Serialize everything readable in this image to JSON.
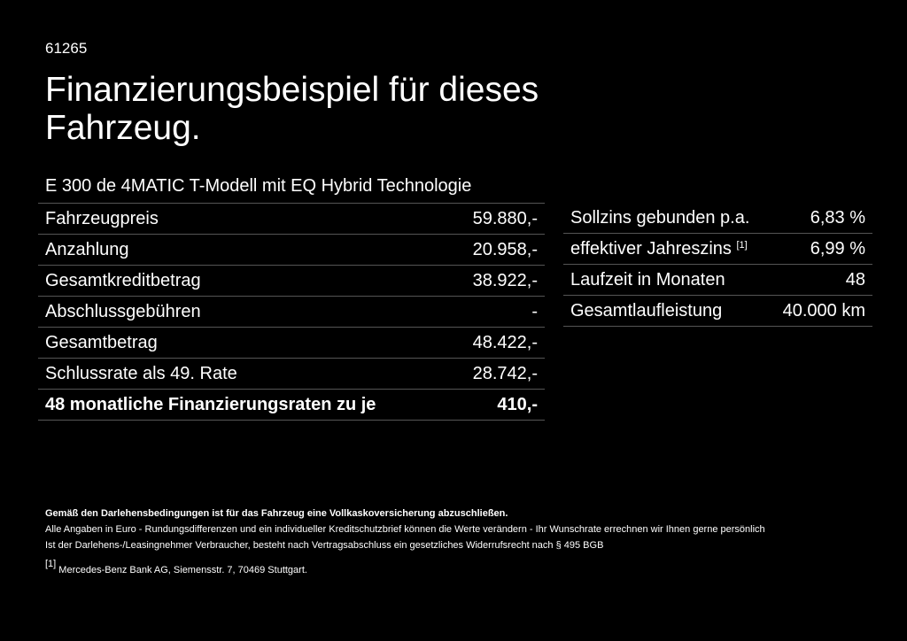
{
  "code": "61265",
  "title": "Finanzierungsbeispiel für dieses Fahrzeug.",
  "model": "E 300 de 4MATIC T-Modell mit EQ Hybrid Technologie",
  "left_rows": [
    {
      "label": "Fahrzeugpreis",
      "value": "59.880,-"
    },
    {
      "label": "Anzahlung",
      "value": "20.958,-"
    },
    {
      "label": "Gesamtkreditbetrag",
      "value": "38.922,-"
    },
    {
      "label": "Abschlussgebühren",
      "value": "-"
    },
    {
      "label": "Gesamtbetrag",
      "value": "48.422,-"
    },
    {
      "label": "Schlussrate als 49. Rate",
      "value": "28.742,-"
    },
    {
      "label": "48 monatliche Finanzierungsraten zu je",
      "value": "410,-"
    }
  ],
  "right_rows": [
    {
      "label": "Sollzins gebunden p.a.",
      "value": "6,83 %"
    },
    {
      "label": "effektiver Jahreszins",
      "sup": "[1]",
      "value": "6,99 %"
    },
    {
      "label": "Laufzeit in Monaten",
      "value": "48"
    },
    {
      "label": "Gesamtlaufleistung",
      "value": "40.000 km"
    }
  ],
  "notes": {
    "bold": "Gemäß den Darlehensbedingungen ist für das Fahrzeug eine Vollkaskoversicherung abzuschließen.",
    "line1": "Alle Angaben in Euro - Rundungsdifferenzen und ein individueller Kreditschutzbrief können die Werte verändern - Ihr Wunschrate errechnen wir Ihnen gerne persönlich",
    "line2": "Ist der Darlehens-/Leasingnehmer Verbraucher, besteht nach Vertragsabschluss ein gesetzliches Widerrufsrecht nach § 495 BGB",
    "footnote_mark": "[1]",
    "footnote": "Mercedes-Benz Bank AG, Siemensstr. 7, 70469 Stuttgart."
  }
}
